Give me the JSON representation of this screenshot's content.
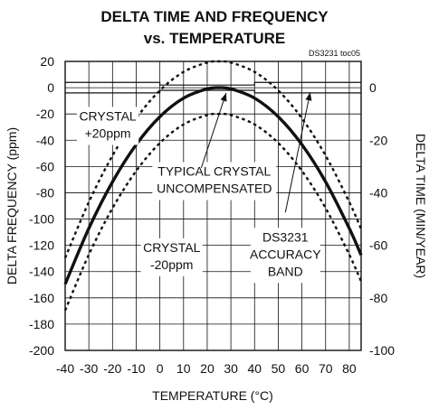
{
  "chart_data": {
    "type": "line",
    "title_line1": "DELTA TIME AND FREQUENCY",
    "title_line2": "vs. TEMPERATURE",
    "note": "DS3231 toc05",
    "xlabel": "TEMPERATURE (°C)",
    "ylabel": "DELTA FREQUENCY (ppm)",
    "y2label": "DELTA TIME (MIN/YEAR)",
    "xlim": [
      -40,
      85
    ],
    "ylim": [
      -200,
      20
    ],
    "y2lim": [
      -100,
      10
    ],
    "xticks": [
      -40,
      -30,
      -20,
      -10,
      0,
      10,
      20,
      30,
      40,
      50,
      60,
      70,
      80
    ],
    "yticks": [
      20,
      0,
      -20,
      -40,
      -60,
      -80,
      -100,
      -120,
      -140,
      -160,
      -180,
      -200
    ],
    "y2ticks": [
      0,
      -20,
      -40,
      -60,
      -80,
      -100
    ],
    "grid": true,
    "series": [
      {
        "name": "TYPICAL CRYSTAL UNCOMPENSATED",
        "style": "solid",
        "x": [
          -40,
          -30,
          -20,
          -10,
          0,
          10,
          20,
          25,
          30,
          40,
          50,
          60,
          70,
          80,
          85
        ],
        "y": [
          -178.5,
          -141.6,
          -108.3,
          -79.6,
          -55.2,
          -35.3,
          -19.8,
          -14.0,
          -19.8,
          -35.3,
          -55.2,
          -79.6,
          -108.3,
          -141.6,
          -160.0
        ],
        "display_offset": 14
      },
      {
        "name": "CRYSTAL +20ppm",
        "style": "dotted",
        "x": [
          -40,
          -30,
          -20,
          -10,
          0,
          10,
          20,
          25,
          30,
          40,
          50,
          60,
          70,
          80,
          85
        ],
        "y": [
          -145.6,
          -108.6,
          -75.3,
          -46.6,
          -22.2,
          -2.3,
          13.2,
          19.0,
          13.2,
          -2.3,
          -22.2,
          -46.6,
          -75.3,
          -108.6,
          -127.0
        ]
      },
      {
        "name": "CRYSTAL -20ppm",
        "style": "dotted",
        "x": [
          -40,
          -30,
          -20,
          -10,
          0,
          10,
          20,
          25,
          30,
          40,
          50,
          60,
          70,
          80,
          85
        ],
        "y": [
          -180.3,
          -143.2,
          -109.9,
          -81.2,
          -56.8,
          -36.9,
          -21.4,
          -20.0,
          -21.4,
          -36.9,
          -56.8,
          -81.2,
          -109.9,
          -143.2,
          -161.6
        ],
        "display_offset": 0
      },
      {
        "name": "DS3231 ACCURACY BAND",
        "style": "band",
        "x": [
          -40,
          0,
          0,
          40,
          40,
          85
        ],
        "upper": [
          4,
          4,
          2,
          2,
          4,
          4
        ],
        "lower": [
          -4,
          -4,
          -2,
          -2,
          -4,
          -4
        ]
      }
    ],
    "annotations": [
      {
        "lines": [
          "CRYSTAL",
          "+20ppm"
        ],
        "x": -22,
        "y": -25
      },
      {
        "lines": [
          "TYPICAL CRYSTAL",
          "UNCOMPENSATED"
        ],
        "x": 23,
        "y": -67
      },
      {
        "lines": [
          "DS3231",
          "ACCURACY",
          "BAND"
        ],
        "x": 53,
        "y": -117
      },
      {
        "lines": [
          "CRYSTAL",
          "-20ppm"
        ],
        "x": 5,
        "y": -125
      }
    ]
  }
}
